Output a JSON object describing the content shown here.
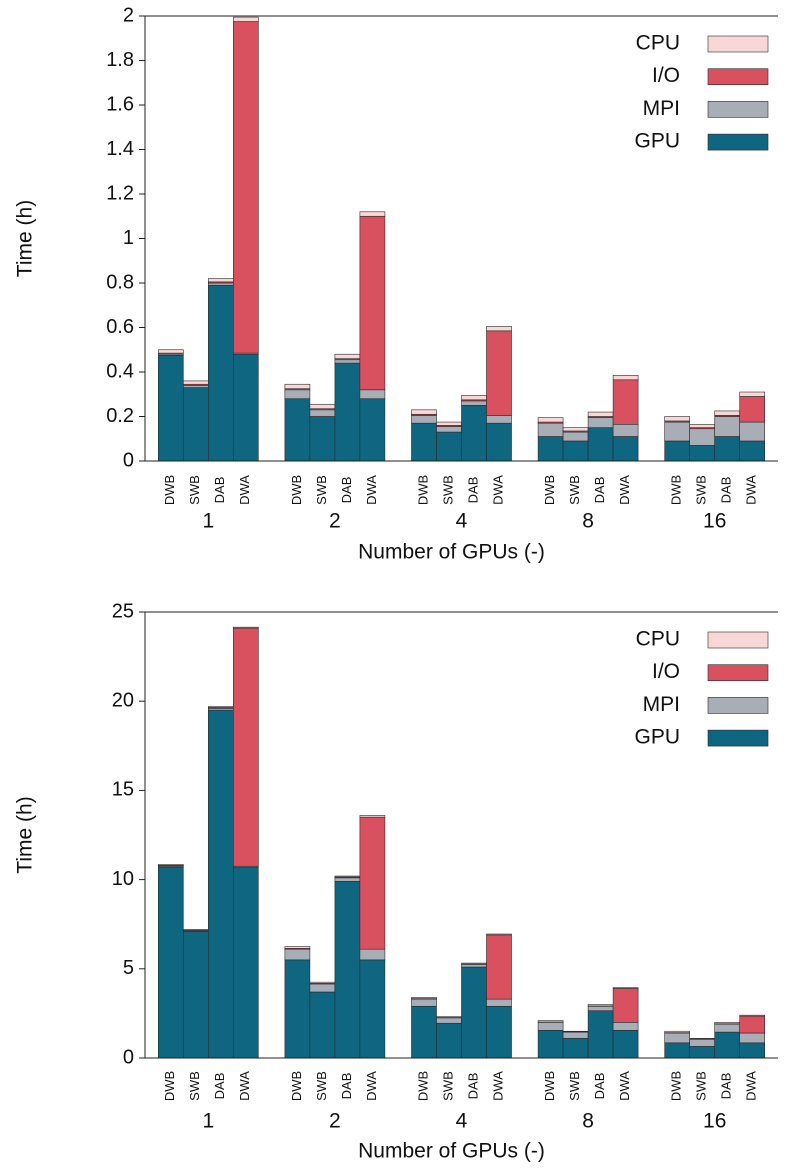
{
  "chart_data": [
    {
      "type": "stacked_bar",
      "ylabel": "Time (h)",
      "xlabel": "Number of GPUs (-)",
      "groups": [
        "1",
        "2",
        "4",
        "8",
        "16"
      ],
      "categories": [
        "DWB",
        "SWB",
        "DAB",
        "DWA",
        "DWB",
        "SWB",
        "DAB",
        "DWA",
        "DWB",
        "SWB",
        "DAB",
        "DWA",
        "DWB",
        "SWB",
        "DAB",
        "DWA",
        "DWB",
        "SWB",
        "DAB",
        "DWA"
      ],
      "series": [
        {
          "name": "GPU",
          "color": "#0e6680",
          "values": [
            0.475,
            0.33,
            0.79,
            0.48,
            0.28,
            0.2,
            0.44,
            0.28,
            0.17,
            0.13,
            0.25,
            0.17,
            0.11,
            0.09,
            0.15,
            0.11,
            0.09,
            0.07,
            0.11,
            0.09
          ]
        },
        {
          "name": "MPI",
          "color": "#a9adb6",
          "values": [
            0.005,
            0.01,
            0.01,
            0.005,
            0.04,
            0.03,
            0.015,
            0.04,
            0.035,
            0.025,
            0.02,
            0.035,
            0.06,
            0.04,
            0.045,
            0.055,
            0.085,
            0.075,
            0.09,
            0.085
          ]
        },
        {
          "name": "I/O",
          "color": "#d9505f",
          "values": [
            0.005,
            0.005,
            0.005,
            1.49,
            0.005,
            0.005,
            0.005,
            0.78,
            0.005,
            0.005,
            0.005,
            0.38,
            0.005,
            0.005,
            0.005,
            0.2,
            0.005,
            0.005,
            0.005,
            0.115
          ]
        },
        {
          "name": "CPU",
          "color": "#f9d7d6",
          "values": [
            0.015,
            0.015,
            0.015,
            0.02,
            0.02,
            0.02,
            0.02,
            0.02,
            0.02,
            0.015,
            0.02,
            0.02,
            0.02,
            0.015,
            0.02,
            0.02,
            0.02,
            0.015,
            0.02,
            0.02
          ]
        }
      ],
      "ylim": [
        0,
        2
      ],
      "yticks": [
        0,
        0.2,
        0.4,
        0.6,
        0.8,
        1,
        1.2,
        1.4,
        1.6,
        1.8,
        2
      ],
      "legend": "upper right"
    },
    {
      "type": "stacked_bar",
      "ylabel": "Time (h)",
      "xlabel": "Number of GPUs (-)",
      "groups": [
        "1",
        "2",
        "4",
        "8",
        "16"
      ],
      "categories": [
        "DWB",
        "SWB",
        "DAB",
        "DWA",
        "DWB",
        "SWB",
        "DAB",
        "DWA",
        "DWB",
        "SWB",
        "DAB",
        "DWA",
        "DWB",
        "SWB",
        "DAB",
        "DWA",
        "DWB",
        "SWB",
        "DAB",
        "DWA"
      ],
      "series": [
        {
          "name": "GPU",
          "color": "#0e6680",
          "values": [
            10.7,
            7.1,
            19.5,
            10.7,
            5.5,
            3.7,
            9.9,
            5.5,
            2.9,
            1.95,
            5.1,
            2.9,
            1.55,
            1.1,
            2.65,
            1.55,
            0.85,
            0.65,
            1.45,
            0.85
          ]
        },
        {
          "name": "MPI",
          "color": "#a9adb6",
          "values": [
            0.05,
            0.05,
            0.1,
            0.05,
            0.6,
            0.45,
            0.2,
            0.6,
            0.4,
            0.3,
            0.15,
            0.4,
            0.45,
            0.35,
            0.25,
            0.45,
            0.55,
            0.4,
            0.45,
            0.55
          ]
        },
        {
          "name": "I/O",
          "color": "#d9505f",
          "values": [
            0.05,
            0.02,
            0.05,
            13.35,
            0.05,
            0.03,
            0.05,
            7.4,
            0.03,
            0.02,
            0.02,
            3.6,
            0.02,
            0.02,
            0.02,
            1.9,
            0.02,
            0.02,
            0.02,
            0.95
          ]
        },
        {
          "name": "CPU",
          "color": "#f9d7d6",
          "values": [
            0.05,
            0.03,
            0.05,
            0.05,
            0.1,
            0.07,
            0.05,
            0.1,
            0.07,
            0.05,
            0.05,
            0.05,
            0.08,
            0.03,
            0.08,
            0.05,
            0.08,
            0.03,
            0.08,
            0.05
          ]
        }
      ],
      "ylim": [
        0,
        25
      ],
      "yticks": [
        0,
        5,
        10,
        15,
        20,
        25
      ],
      "legend": "upper right"
    }
  ]
}
